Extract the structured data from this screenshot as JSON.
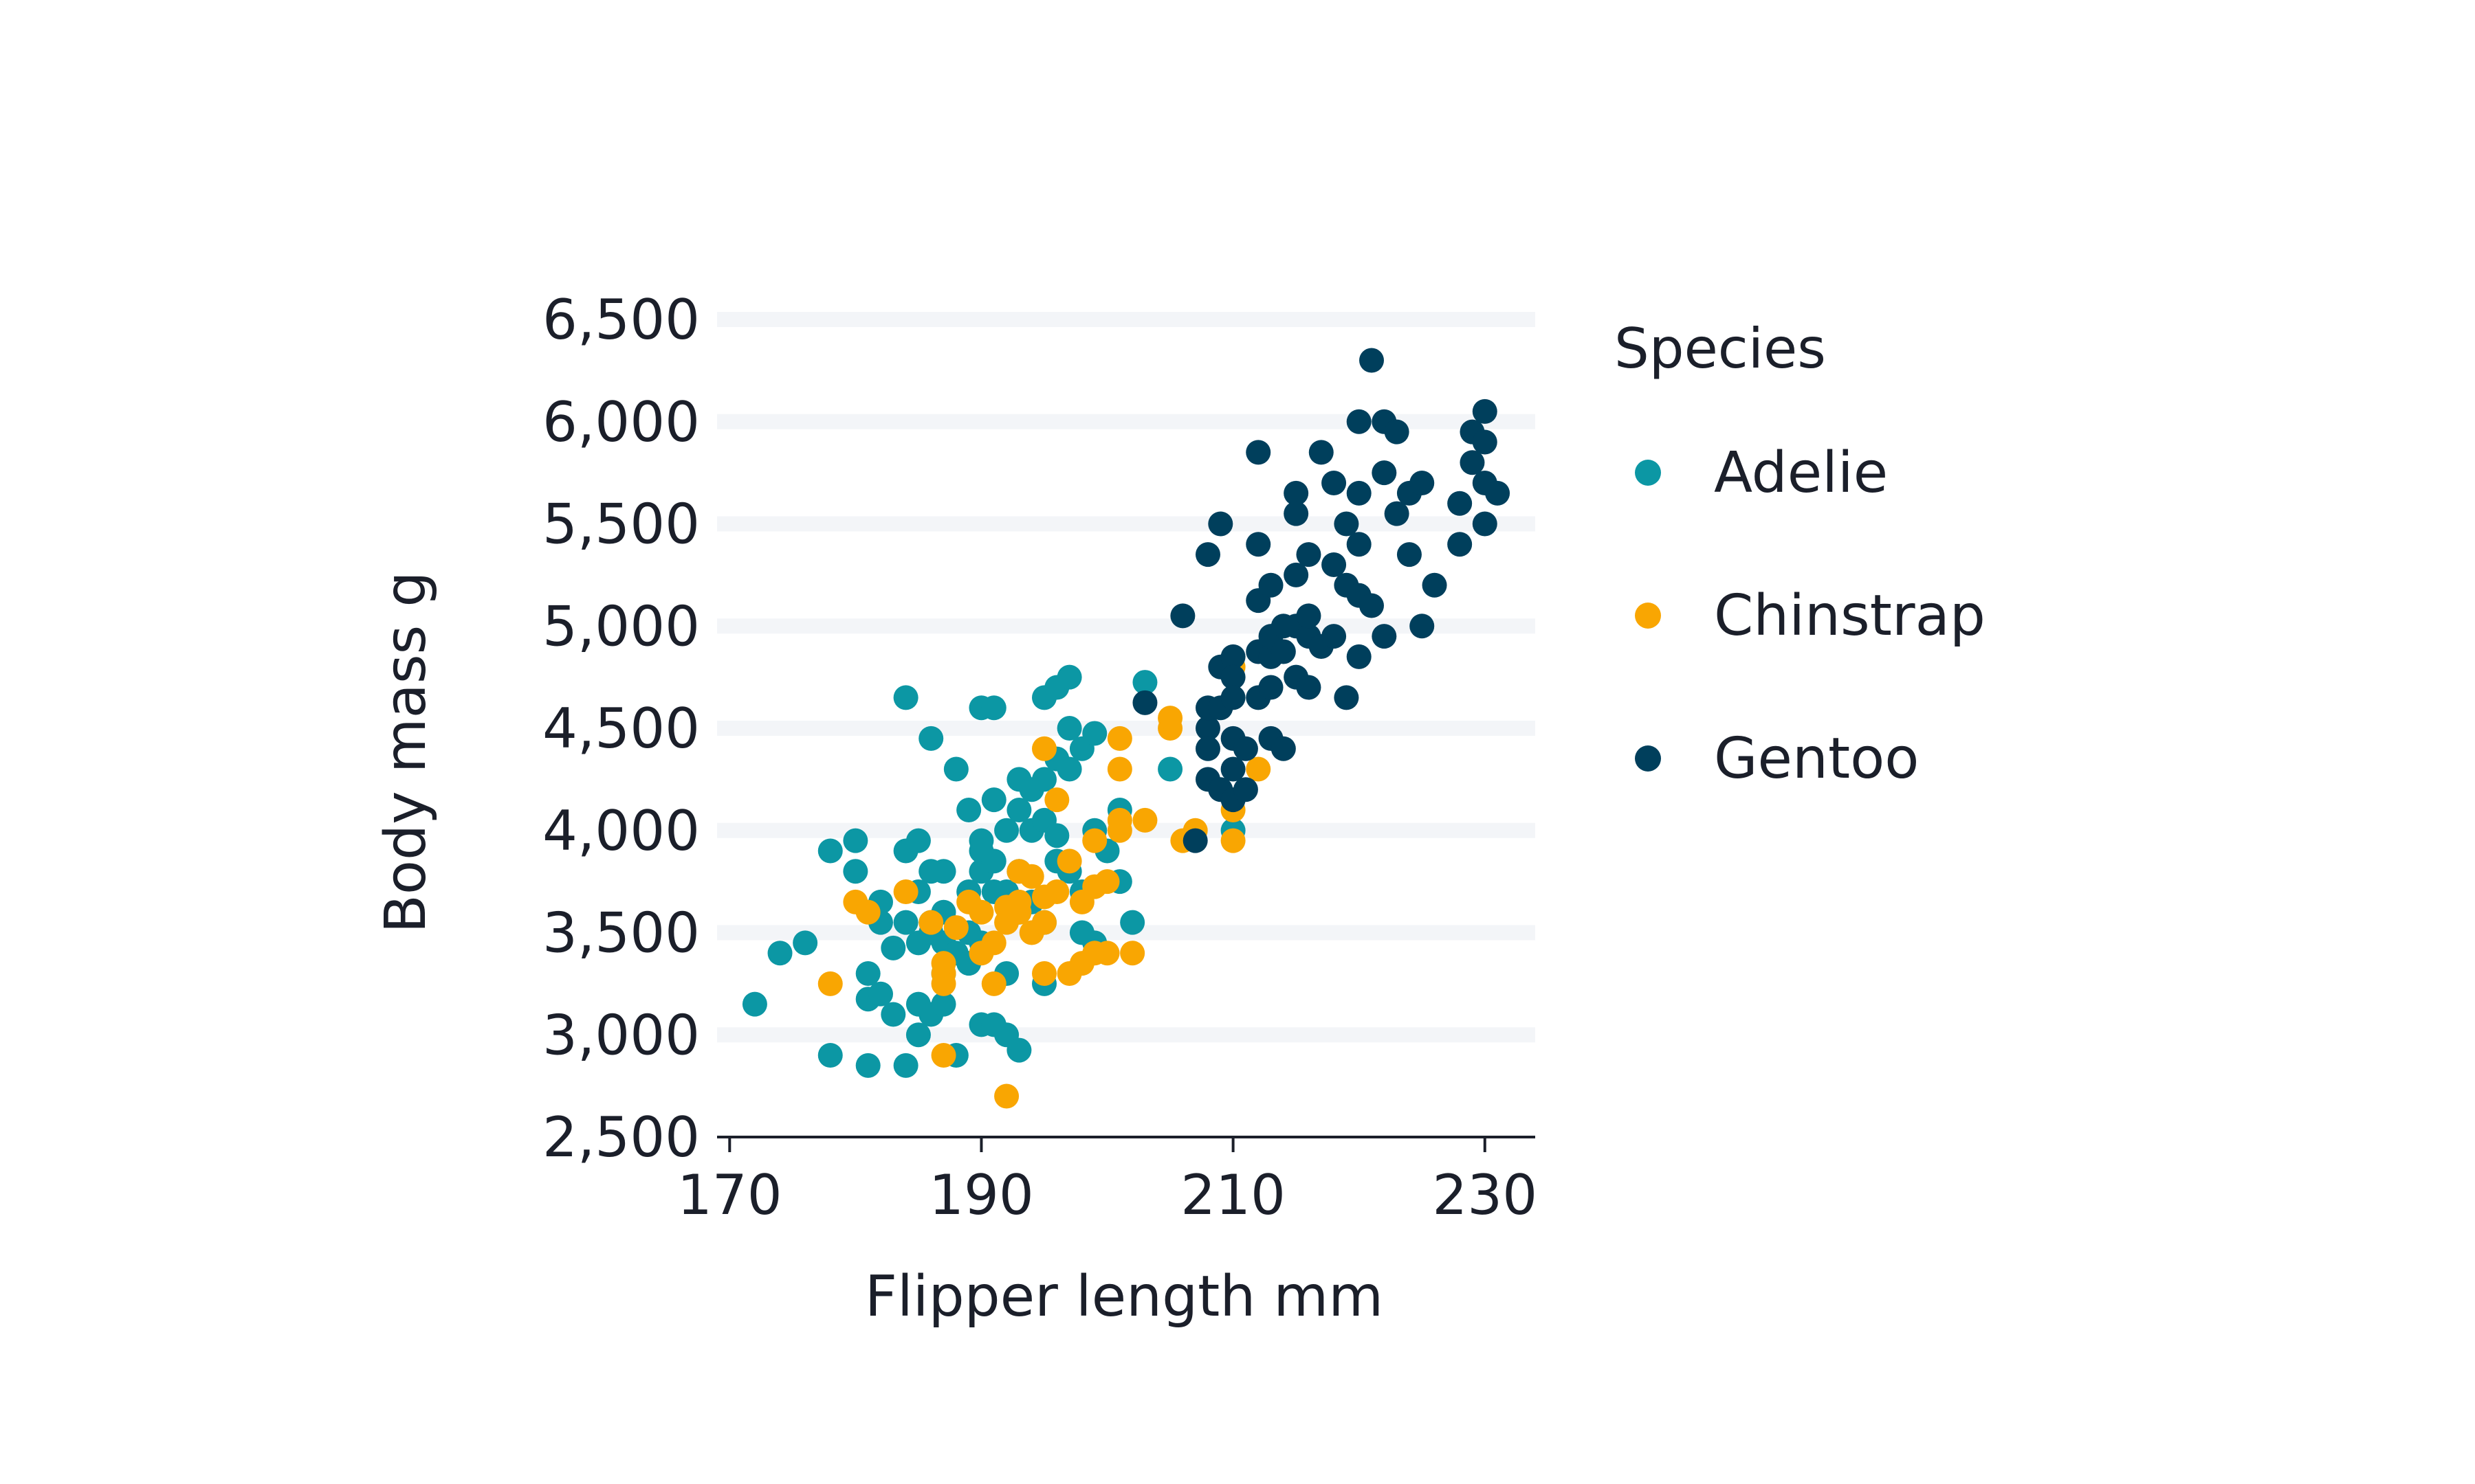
{
  "chart_data": {
    "type": "scatter",
    "title": "",
    "xlabel": "Flipper length mm",
    "ylabel": "Body mass g",
    "xlim": [
      169,
      234
    ],
    "ylim": [
      2500,
      6500
    ],
    "x_ticks": [
      170,
      190,
      210,
      230
    ],
    "y_ticks": [
      2500,
      3000,
      3500,
      4000,
      4500,
      5000,
      5500,
      6000,
      6500
    ],
    "x_tick_labels": [
      "170",
      "190",
      "210",
      "230"
    ],
    "y_tick_labels": [
      "2,500",
      "3,000",
      "3,500",
      "4,000",
      "4,500",
      "5,000",
      "5,500",
      "6,000",
      "6,500"
    ],
    "grid": "horizontal",
    "legend": {
      "title": "Species",
      "placement": "right"
    },
    "series": [
      {
        "name": "Adelie",
        "color": "#0c97a4",
        "points": [
          [
            172,
            3150
          ],
          [
            174,
            3400
          ],
          [
            176,
            3450
          ],
          [
            178,
            2900
          ],
          [
            178,
            3900
          ],
          [
            180,
            3950
          ],
          [
            180,
            3800
          ],
          [
            181,
            3300
          ],
          [
            181,
            2850
          ],
          [
            181,
            3175
          ],
          [
            182,
            3200
          ],
          [
            182,
            3650
          ],
          [
            182,
            3550
          ],
          [
            183,
            3425
          ],
          [
            183,
            3100
          ],
          [
            184,
            2850
          ],
          [
            184,
            3900
          ],
          [
            184,
            3550
          ],
          [
            184,
            4650
          ],
          [
            185,
            3700
          ],
          [
            185,
            3450
          ],
          [
            185,
            3000
          ],
          [
            185,
            3950
          ],
          [
            185,
            3150
          ],
          [
            186,
            3800
          ],
          [
            186,
            3500
          ],
          [
            186,
            3550
          ],
          [
            186,
            4450
          ],
          [
            186,
            3100
          ],
          [
            187,
            3800
          ],
          [
            187,
            3300
          ],
          [
            187,
            3450
          ],
          [
            187,
            3150
          ],
          [
            187,
            3600
          ],
          [
            188,
            3400
          ],
          [
            188,
            4300
          ],
          [
            188,
            2900
          ],
          [
            189,
            3700
          ],
          [
            189,
            3500
          ],
          [
            189,
            4100
          ],
          [
            189,
            3350
          ],
          [
            190,
            3450
          ],
          [
            190,
            3950
          ],
          [
            190,
            4600
          ],
          [
            190,
            3800
          ],
          [
            190,
            3050
          ],
          [
            190,
            3900
          ],
          [
            191,
            4600
          ],
          [
            191,
            3700
          ],
          [
            191,
            3850
          ],
          [
            191,
            3050
          ],
          [
            191,
            4150
          ],
          [
            192,
            3000
          ],
          [
            192,
            4000
          ],
          [
            192,
            3700
          ],
          [
            192,
            3300
          ],
          [
            193,
            4250
          ],
          [
            193,
            3800
          ],
          [
            193,
            2925
          ],
          [
            193,
            3600
          ],
          [
            193,
            4100
          ],
          [
            194,
            4000
          ],
          [
            194,
            4200
          ],
          [
            194,
            3650
          ],
          [
            195,
            3250
          ],
          [
            195,
            4050
          ],
          [
            195,
            4250
          ],
          [
            195,
            4650
          ],
          [
            195,
            3550
          ],
          [
            196,
            4700
          ],
          [
            196,
            3850
          ],
          [
            196,
            4350
          ],
          [
            196,
            3975
          ],
          [
            197,
            4500
          ],
          [
            197,
            4750
          ],
          [
            197,
            3800
          ],
          [
            197,
            4300
          ],
          [
            198,
            3700
          ],
          [
            198,
            4400
          ],
          [
            198,
            3500
          ],
          [
            199,
            3450
          ],
          [
            199,
            4000
          ],
          [
            199,
            4475
          ],
          [
            200,
            3900
          ],
          [
            201,
            3750
          ],
          [
            201,
            4100
          ],
          [
            202,
            3550
          ],
          [
            203,
            4725
          ],
          [
            205,
            4300
          ],
          [
            210,
            4000
          ]
        ]
      },
      {
        "name": "Chinstrap",
        "color": "#f9a602",
        "points": [
          [
            178,
            3250
          ],
          [
            180,
            3650
          ],
          [
            181,
            3600
          ],
          [
            184,
            3700
          ],
          [
            186,
            3550
          ],
          [
            187,
            2900
          ],
          [
            187,
            3300
          ],
          [
            187,
            3250
          ],
          [
            187,
            3350
          ],
          [
            188,
            3525
          ],
          [
            189,
            3650
          ],
          [
            190,
            3400
          ],
          [
            190,
            3600
          ],
          [
            191,
            3450
          ],
          [
            191,
            3250
          ],
          [
            192,
            2700
          ],
          [
            192,
            3550
          ],
          [
            192,
            3625
          ],
          [
            193,
            3600
          ],
          [
            193,
            3800
          ],
          [
            193,
            3650
          ],
          [
            194,
            3500
          ],
          [
            194,
            3775
          ],
          [
            195,
            3300
          ],
          [
            195,
            3550
          ],
          [
            195,
            4400
          ],
          [
            195,
            3675
          ],
          [
            196,
            4150
          ],
          [
            196,
            3700
          ],
          [
            197,
            3300
          ],
          [
            197,
            3850
          ],
          [
            198,
            3350
          ],
          [
            198,
            3650
          ],
          [
            199,
            3400
          ],
          [
            199,
            3725
          ],
          [
            199,
            3950
          ],
          [
            200,
            3750
          ],
          [
            200,
            3400
          ],
          [
            201,
            4450
          ],
          [
            201,
            4050
          ],
          [
            201,
            4300
          ],
          [
            201,
            4000
          ],
          [
            202,
            3400
          ],
          [
            203,
            4050
          ],
          [
            205,
            4500
          ],
          [
            205,
            4550
          ],
          [
            206,
            3950
          ],
          [
            207,
            4000
          ],
          [
            210,
            4800
          ],
          [
            210,
            3950
          ],
          [
            210,
            4100
          ],
          [
            212,
            4300
          ]
        ]
      },
      {
        "name": "Gentoo",
        "color": "#003f5c",
        "points": [
          [
            203,
            4625
          ],
          [
            206,
            5050
          ],
          [
            207,
            3950
          ],
          [
            208,
            4500
          ],
          [
            208,
            4250
          ],
          [
            208,
            4400
          ],
          [
            208,
            4600
          ],
          [
            208,
            5350
          ],
          [
            209,
            4200
          ],
          [
            209,
            4600
          ],
          [
            209,
            4800
          ],
          [
            209,
            5500
          ],
          [
            210,
            4150
          ],
          [
            210,
            4450
          ],
          [
            210,
            4850
          ],
          [
            210,
            4750
          ],
          [
            210,
            4300
          ],
          [
            210,
            4650
          ],
          [
            211,
            4400
          ],
          [
            211,
            4200
          ],
          [
            212,
            4875
          ],
          [
            212,
            5400
          ],
          [
            212,
            4650
          ],
          [
            212,
            5850
          ],
          [
            212,
            5125
          ],
          [
            213,
            4850
          ],
          [
            213,
            4450
          ],
          [
            213,
            4950
          ],
          [
            213,
            4700
          ],
          [
            213,
            5200
          ],
          [
            214,
            4400
          ],
          [
            214,
            4875
          ],
          [
            214,
            5000
          ],
          [
            215,
            5000
          ],
          [
            215,
            5250
          ],
          [
            215,
            4750
          ],
          [
            215,
            5650
          ],
          [
            215,
            5550
          ],
          [
            216,
            4700
          ],
          [
            216,
            4950
          ],
          [
            216,
            5050
          ],
          [
            216,
            5350
          ],
          [
            217,
            5850
          ],
          [
            217,
            4900
          ],
          [
            218,
            5300
          ],
          [
            218,
            5700
          ],
          [
            218,
            4950
          ],
          [
            219,
            5500
          ],
          [
            219,
            4650
          ],
          [
            219,
            5200
          ],
          [
            220,
            6000
          ],
          [
            220,
            5400
          ],
          [
            220,
            5150
          ],
          [
            220,
            4850
          ],
          [
            220,
            5650
          ],
          [
            221,
            6300
          ],
          [
            221,
            5100
          ],
          [
            222,
            5750
          ],
          [
            222,
            6000
          ],
          [
            222,
            4950
          ],
          [
            223,
            5550
          ],
          [
            223,
            5950
          ],
          [
            224,
            5350
          ],
          [
            224,
            5650
          ],
          [
            225,
            5700
          ],
          [
            225,
            5000
          ],
          [
            226,
            5200
          ],
          [
            228,
            5400
          ],
          [
            228,
            5600
          ],
          [
            229,
            5800
          ],
          [
            229,
            5950
          ],
          [
            230,
            5500
          ],
          [
            230,
            5700
          ],
          [
            230,
            5900
          ],
          [
            230,
            6050
          ],
          [
            231,
            5650
          ]
        ]
      }
    ]
  }
}
